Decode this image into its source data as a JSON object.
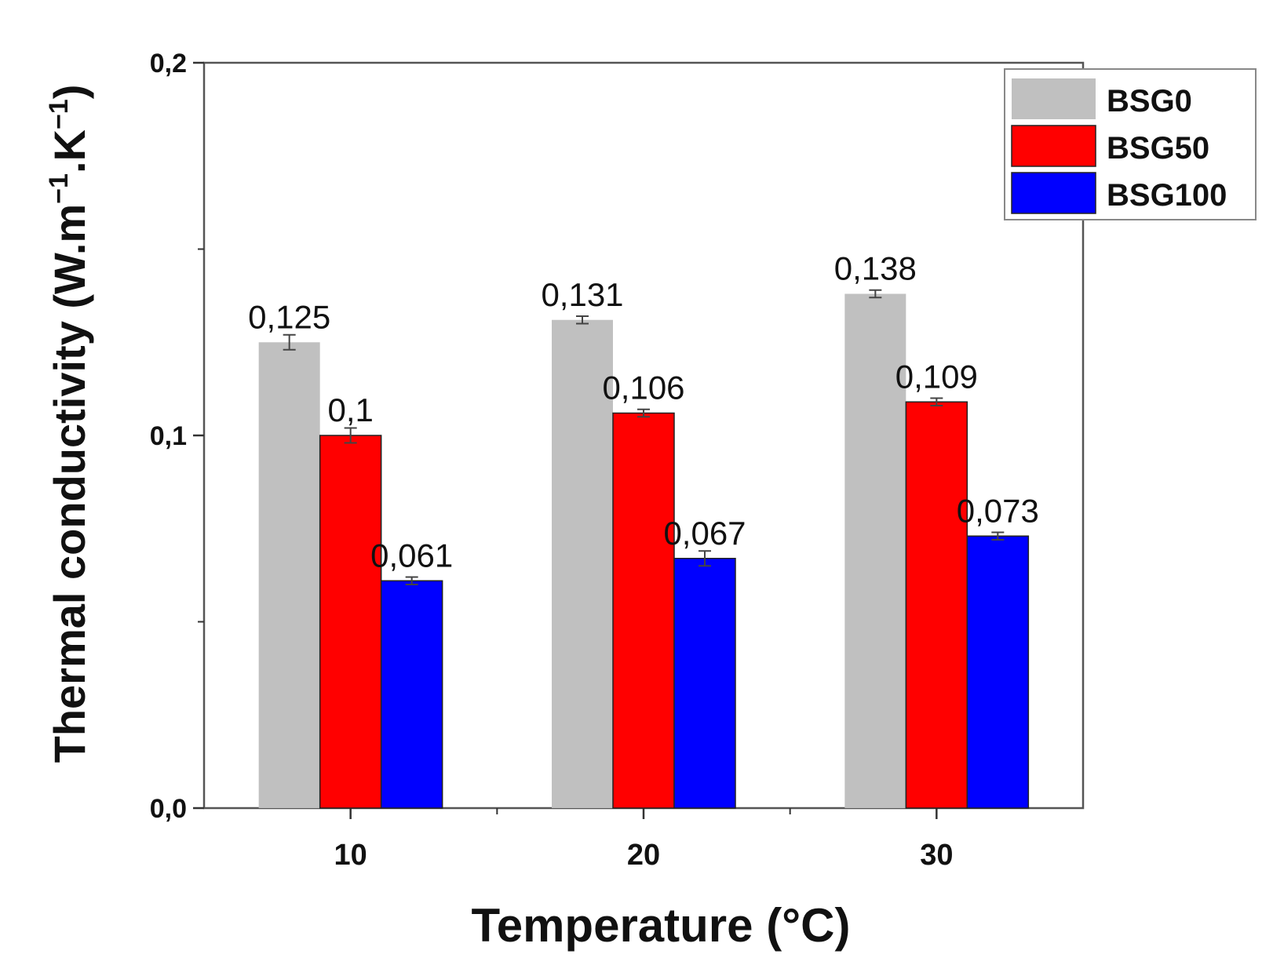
{
  "chart_data": {
    "type": "bar",
    "title": "",
    "xlabel": "Temperature (°C)",
    "ylabel": {
      "main": "Thermal conductivity (W.m",
      "sup1": "−1",
      "mid": ".K",
      "sup2": "−1",
      "close": ")"
    },
    "categories": [
      "10",
      "20",
      "30"
    ],
    "ylim": [
      0,
      0.2
    ],
    "yticks": [
      {
        "value": 0,
        "label": "0,0"
      },
      {
        "value": 0.1,
        "label": "0,1"
      },
      {
        "value": 0.2,
        "label": "0,2"
      }
    ],
    "series": [
      {
        "name": "BSG0",
        "color": "#c0c0c0",
        "values": [
          0.125,
          0.131,
          0.138
        ],
        "labels": [
          "0,125",
          "0,131",
          "0,138"
        ],
        "errors": [
          0.002,
          0.001,
          0.001
        ]
      },
      {
        "name": "BSG50",
        "color": "#ff0000",
        "values": [
          0.1,
          0.106,
          0.109
        ],
        "labels": [
          "0,1",
          "0,106",
          "0,109"
        ],
        "errors": [
          0.002,
          0.001,
          0.001
        ]
      },
      {
        "name": "BSG100",
        "color": "#0000ff",
        "values": [
          0.061,
          0.067,
          0.073
        ],
        "labels": [
          "0,061",
          "0,067",
          "0,073"
        ],
        "errors": [
          0.001,
          0.002,
          0.001
        ]
      }
    ],
    "legend_position": "top-right",
    "grid": false
  }
}
